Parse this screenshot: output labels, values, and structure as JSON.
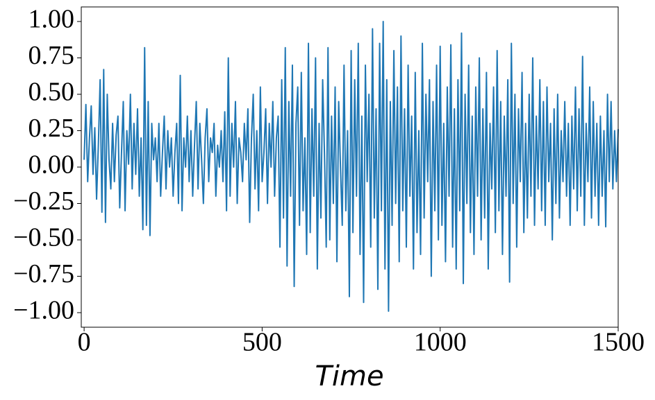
{
  "chart_data": {
    "type": "line",
    "xlabel": "Time",
    "xlim": [
      -8,
      1500
    ],
    "xticks": [
      0,
      500,
      1000,
      1500
    ],
    "ylim": [
      -1.1,
      1.1
    ],
    "yticks": [
      {
        "value": -1,
        "label": "−1.00"
      },
      {
        "value": -0.75,
        "label": "−0.75"
      },
      {
        "value": -0.5,
        "label": "−0.50"
      },
      {
        "value": -0.25,
        "label": "−0.25"
      },
      {
        "value": 0,
        "label": "0.00"
      },
      {
        "value": 0.25,
        "label": "0.25"
      },
      {
        "value": 0.5,
        "label": "0.50"
      },
      {
        "value": 0.75,
        "label": "0.75"
      },
      {
        "value": 1,
        "label": "1.00"
      }
    ],
    "x": [
      0,
      5,
      10,
      15,
      20,
      25,
      30,
      35,
      40,
      45,
      50,
      55,
      60,
      65,
      70,
      75,
      80,
      85,
      90,
      95,
      100,
      105,
      110,
      115,
      120,
      125,
      130,
      135,
      140,
      145,
      150,
      155,
      160,
      165,
      170,
      175,
      180,
      185,
      190,
      195,
      200,
      205,
      210,
      215,
      220,
      225,
      230,
      235,
      240,
      245,
      250,
      255,
      260,
      265,
      270,
      275,
      280,
      285,
      290,
      295,
      300,
      305,
      310,
      315,
      320,
      325,
      330,
      335,
      340,
      345,
      350,
      355,
      360,
      365,
      370,
      375,
      380,
      385,
      390,
      395,
      400,
      405,
      410,
      415,
      420,
      425,
      430,
      435,
      440,
      445,
      450,
      455,
      460,
      465,
      470,
      475,
      480,
      485,
      490,
      495,
      500,
      505,
      510,
      515,
      520,
      525,
      530,
      535,
      540,
      545,
      550,
      555,
      560,
      565,
      570,
      575,
      580,
      585,
      590,
      595,
      600,
      605,
      610,
      615,
      620,
      625,
      630,
      635,
      640,
      645,
      650,
      655,
      660,
      665,
      670,
      675,
      680,
      685,
      690,
      695,
      700,
      705,
      710,
      715,
      720,
      725,
      730,
      735,
      740,
      745,
      750,
      755,
      760,
      765,
      770,
      775,
      780,
      785,
      790,
      795,
      800,
      805,
      810,
      815,
      820,
      825,
      830,
      835,
      840,
      845,
      850,
      855,
      860,
      865,
      870,
      875,
      880,
      885,
      890,
      895,
      900,
      905,
      910,
      915,
      920,
      925,
      930,
      935,
      940,
      945,
      950,
      955,
      960,
      965,
      970,
      975,
      980,
      985,
      990,
      995,
      1000,
      1005,
      1010,
      1015,
      1020,
      1025,
      1030,
      1035,
      1040,
      1045,
      1050,
      1055,
      1060,
      1065,
      1070,
      1075,
      1080,
      1085,
      1090,
      1095,
      1100,
      1105,
      1110,
      1115,
      1120,
      1125,
      1130,
      1135,
      1140,
      1145,
      1150,
      1155,
      1160,
      1165,
      1170,
      1175,
      1180,
      1185,
      1190,
      1195,
      1200,
      1205,
      1210,
      1215,
      1220,
      1225,
      1230,
      1235,
      1240,
      1245,
      1250,
      1255,
      1260,
      1265,
      1270,
      1275,
      1280,
      1285,
      1290,
      1295,
      1300,
      1305,
      1310,
      1315,
      1320,
      1325,
      1330,
      1335,
      1340,
      1345,
      1350,
      1355,
      1360,
      1365,
      1370,
      1375,
      1380,
      1385,
      1390,
      1395,
      1400,
      1405,
      1410,
      1415,
      1420,
      1425,
      1430,
      1435,
      1440,
      1445,
      1450,
      1455,
      1460,
      1465,
      1470,
      1475,
      1480,
      1485,
      1490,
      1495,
      1500
    ],
    "series": [
      {
        "color": "#1f77b4",
        "values": [
          0.05,
          0.43,
          -0.1,
          0.2,
          0.42,
          -0.05,
          0.27,
          -0.22,
          0.15,
          0.6,
          -0.31,
          0.67,
          -0.38,
          0.5,
          0.05,
          -0.15,
          0.3,
          -0.1,
          0.22,
          0.35,
          -0.28,
          0.1,
          0.45,
          -0.3,
          0.25,
          0.02,
          0.5,
          -0.15,
          0.3,
          -0.05,
          0.4,
          -0.2,
          0.2,
          -0.43,
          0.82,
          -0.4,
          0.45,
          -0.47,
          0.3,
          0.05,
          0.2,
          -0.1,
          0.3,
          -0.2,
          0.1,
          0.35,
          -0.15,
          0.25,
          0.0,
          0.2,
          -0.2,
          0.1,
          0.3,
          -0.25,
          0.63,
          -0.3,
          0.2,
          0.0,
          0.35,
          -0.1,
          0.25,
          -0.2,
          0.15,
          0.45,
          -0.15,
          0.3,
          0.05,
          -0.25,
          0.2,
          0.4,
          -0.1,
          0.2,
          0.1,
          0.3,
          -0.2,
          0.15,
          0.0,
          0.25,
          -0.1,
          0.38,
          -0.3,
          0.75,
          -0.2,
          0.3,
          0.0,
          0.45,
          -0.25,
          0.2,
          0.1,
          -0.1,
          0.3,
          0.05,
          0.4,
          -0.38,
          0.2,
          0.5,
          -0.15,
          0.25,
          -0.3,
          0.55,
          -0.1,
          0.1,
          0.4,
          -0.25,
          0.3,
          0.0,
          0.45,
          -0.2,
          0.2,
          0.35,
          -0.55,
          0.6,
          -0.35,
          0.82,
          -0.68,
          0.45,
          -0.2,
          0.7,
          -0.82,
          0.3,
          0.55,
          -0.4,
          0.65,
          -0.3,
          0.2,
          -0.6,
          0.85,
          -0.45,
          0.4,
          -0.2,
          0.75,
          -0.7,
          0.3,
          -0.35,
          0.6,
          0.1,
          -0.55,
          0.82,
          -0.5,
          0.35,
          -0.25,
          0.55,
          -0.65,
          0.45,
          0.0,
          -0.4,
          0.7,
          -0.3,
          0.25,
          -0.89,
          0.8,
          -0.45,
          0.6,
          -0.2,
          0.85,
          -0.6,
          0.35,
          -0.93,
          0.7,
          -0.1,
          0.5,
          -0.55,
          0.95,
          -0.35,
          0.4,
          -0.84,
          0.85,
          -0.3,
          1.0,
          -0.7,
          0.6,
          -0.99,
          0.45,
          -0.4,
          0.8,
          -0.25,
          0.55,
          -0.65,
          0.9,
          -0.3,
          0.4,
          -0.55,
          0.7,
          -0.2,
          0.35,
          -0.7,
          0.65,
          -0.45,
          0.25,
          -0.6,
          0.85,
          -0.35,
          0.5,
          -0.1,
          0.6,
          -0.75,
          0.45,
          -0.3,
          0.7,
          -0.5,
          0.83,
          -0.4,
          0.3,
          -0.65,
          0.55,
          -0.2,
          0.84,
          -0.55,
          0.4,
          -0.7,
          0.6,
          -0.3,
          0.92,
          -0.8,
          0.5,
          -0.25,
          0.7,
          -0.45,
          0.35,
          -0.6,
          0.55,
          -0.2,
          0.75,
          -0.5,
          0.4,
          -0.35,
          0.65,
          -0.7,
          0.3,
          -0.15,
          0.55,
          -0.45,
          0.8,
          -0.3,
          0.45,
          -0.6,
          0.35,
          -0.2,
          0.6,
          -0.79,
          0.85,
          -0.25,
          0.5,
          -0.55,
          0.4,
          -0.1,
          0.65,
          -0.45,
          0.3,
          -0.35,
          0.5,
          -0.2,
          0.75,
          -0.4,
          0.35,
          -0.15,
          0.6,
          -0.3,
          0.45,
          -0.4,
          0.55,
          -0.1,
          0.3,
          -0.5,
          0.4,
          -0.25,
          0.5,
          -0.35,
          0.25,
          -0.1,
          0.45,
          -0.2,
          0.3,
          -0.4,
          0.35,
          -0.15,
          0.55,
          -0.3,
          0.4,
          -0.2,
          0.76,
          -0.4,
          0.3,
          -0.1,
          0.55,
          -0.35,
          0.45,
          -0.2,
          0.3,
          -0.4,
          0.35,
          -0.2,
          0.25,
          -0.41,
          0.5,
          -0.1,
          0.45,
          -0.15,
          0.25,
          -0.1,
          0.26
        ]
      }
    ]
  }
}
